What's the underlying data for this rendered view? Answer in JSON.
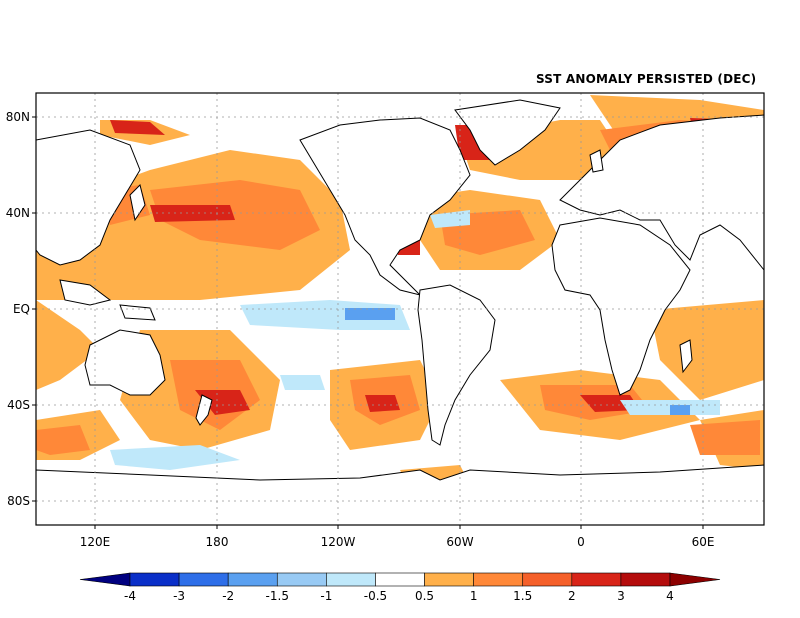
{
  "title": "SST ANOMALY PERSISTED (DEC)",
  "lat_labels": [
    "80N",
    "40N",
    "EQ",
    "40S",
    "80S"
  ],
  "lon_labels": [
    "120E",
    "180",
    "120W",
    "60W",
    "0",
    "60E"
  ],
  "colorbar": {
    "levels": [
      "-4",
      "-3",
      "-2",
      "-1.5",
      "-1",
      "-0.5",
      "0.5",
      "1",
      "1.5",
      "2",
      "3",
      "4"
    ],
    "colors": [
      "#000080",
      "#0a2fc8",
      "#2e6ee8",
      "#5aa0f0",
      "#98caf4",
      "#bfe8fa",
      "#ffffff",
      "#ffb04a",
      "#ff8838",
      "#f5602a",
      "#d82418",
      "#b40c0c",
      "#8c0000"
    ]
  }
}
